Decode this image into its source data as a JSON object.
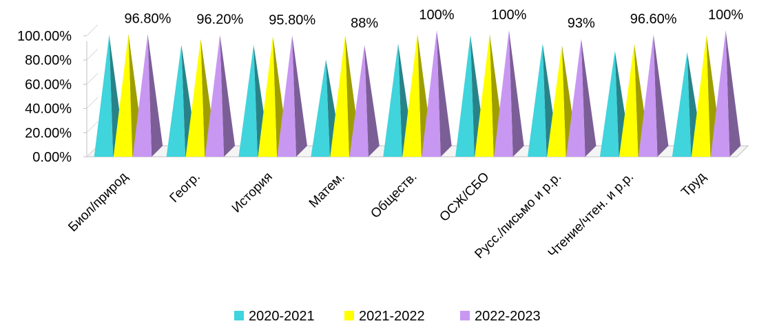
{
  "chart_data": {
    "type": "bar",
    "bar_shape": "pyramid-3d",
    "categories": [
      "Биол/природ",
      "Геогр.",
      "История",
      "Матем.",
      "Обществ.",
      "ОСЖ/СБО",
      "Русс./письмо и р.р.",
      "Чтение/чтен. и р.р.",
      "Труд"
    ],
    "series": [
      {
        "name": "2020-2021",
        "color": "#40D4DC",
        "values": [
          0.96,
          0.88,
          0.88,
          0.76,
          0.89,
          0.96,
          0.89,
          0.83,
          0.82
        ]
      },
      {
        "name": "2021-2022",
        "color": "#FFFF00",
        "values": [
          0.97,
          0.93,
          0.95,
          0.96,
          0.97,
          0.97,
          0.88,
          0.89,
          0.96
        ]
      },
      {
        "name": "2022-2023",
        "color": "#C897F2",
        "values": [
          0.968,
          0.962,
          0.958,
          0.88,
          1.0,
          1.0,
          0.93,
          0.966,
          1.0
        ]
      }
    ],
    "data_labels": [
      "96.80%",
      "96.20%",
      "95.80%",
      "88%",
      "100%",
      "100%",
      "93%",
      "96.60%",
      "100%"
    ],
    "y_ticks": [
      "0.00%",
      "20.00%",
      "40.00%",
      "60.00%",
      "80.00%",
      "100.00%"
    ],
    "ylim": [
      0,
      1
    ],
    "grid": false,
    "legend_position": "bottom"
  }
}
